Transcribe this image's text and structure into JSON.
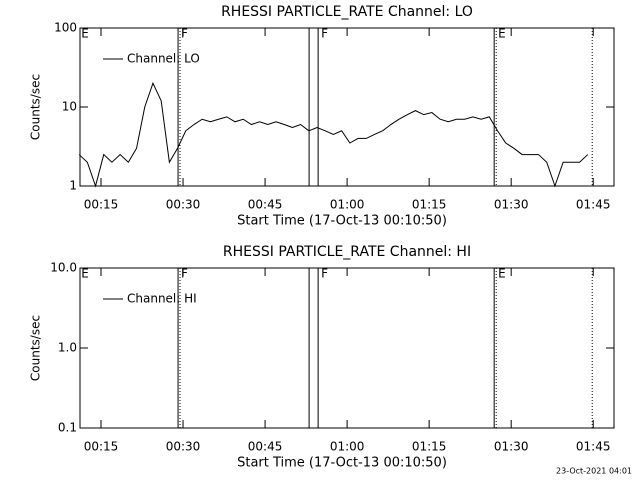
{
  "chart_data": [
    {
      "type": "line",
      "title": "RHESSI PARTICLE_RATE Channel: LO",
      "xlabel": "Start Time (17-Oct-13 00:10:50)",
      "ylabel": "Counts/sec",
      "log_y": true,
      "xlim": [
        11.16,
        108.8
      ],
      "ylim": [
        1,
        100
      ],
      "yticks": [
        1,
        10,
        100
      ],
      "xticks": [
        {
          "value": 15,
          "label": "00:15"
        },
        {
          "value": 30,
          "label": "00:30"
        },
        {
          "value": 45,
          "label": "00:45"
        },
        {
          "value": 60,
          "label": "01:00"
        },
        {
          "value": 75,
          "label": "01:15"
        },
        {
          "value": 90,
          "label": "01:30"
        },
        {
          "value": 105,
          "label": "01:45"
        }
      ],
      "x": [
        11,
        12.5,
        14,
        15.5,
        17,
        18.5,
        20,
        21.5,
        23,
        24.5,
        26,
        27.5,
        29,
        30.5,
        32,
        33.5,
        35,
        36.5,
        38,
        39.5,
        41,
        42.5,
        44,
        45.5,
        47,
        48.5,
        50,
        51.5,
        53,
        54.5,
        56,
        57.5,
        59,
        60.5,
        62,
        63.5,
        65,
        66.5,
        68,
        69.5,
        71,
        72.5,
        74,
        75.5,
        77,
        78.5,
        80,
        81.5,
        83,
        84.5,
        86,
        87.5,
        89,
        90.5,
        92,
        93.5,
        95,
        96.5,
        98,
        99.5,
        101,
        102.5,
        104
      ],
      "series": [
        {
          "name": "Channel: LO",
          "color": "#000000",
          "values": [
            2.5,
            2,
            1,
            2.5,
            2,
            2.5,
            2,
            3,
            10,
            20,
            12,
            2,
            3,
            5,
            6,
            7,
            6.5,
            7,
            7.5,
            6.5,
            7,
            6,
            6.5,
            6,
            6.5,
            6,
            5.5,
            6,
            5,
            5.5,
            5,
            4.5,
            5,
            3.5,
            4,
            4,
            4.5,
            5,
            6,
            7,
            8,
            9,
            8,
            8.5,
            7,
            6.5,
            7,
            7,
            7.5,
            7,
            7.5,
            5,
            3.5,
            3,
            2.5,
            2.5,
            2.5,
            2,
            1,
            2,
            2,
            2,
            2.5
          ]
        }
      ],
      "markers": [
        {
          "x": 29.09,
          "style": "solid"
        },
        {
          "x": 29.45,
          "style": "dotted"
        },
        {
          "x": 53.05,
          "style": "solid"
        },
        {
          "x": 54.7,
          "style": "solid"
        },
        {
          "x": 86.89,
          "style": "solid"
        },
        {
          "x": 87.26,
          "style": "dotted"
        },
        {
          "x": 104.82,
          "style": "dotted"
        }
      ],
      "flags": [
        {
          "x": 11.2,
          "label": "E"
        },
        {
          "x": 29.45,
          "label": "F"
        },
        {
          "x": 55.06,
          "label": "F"
        },
        {
          "x": 87.44,
          "label": "E"
        }
      ]
    },
    {
      "type": "line",
      "title": "RHESSI PARTICLE_RATE Channel: HI",
      "xlabel": "Start Time (17-Oct-13 00:10:50)",
      "ylabel": "Counts/sec",
      "log_y": true,
      "xlim": [
        11.16,
        108.8
      ],
      "ylim": [
        0.1,
        10
      ],
      "yticks": [
        0.1,
        {
          "value": 1,
          "label": "1.0"
        },
        {
          "value": 10,
          "label": "10.0"
        }
      ],
      "xticks": [
        {
          "value": 15,
          "label": "00:15"
        },
        {
          "value": 30,
          "label": "00:30"
        },
        {
          "value": 45,
          "label": "00:45"
        },
        {
          "value": 60,
          "label": "01:00"
        },
        {
          "value": 75,
          "label": "01:15"
        },
        {
          "value": 90,
          "label": "01:30"
        },
        {
          "value": 105,
          "label": "01:45"
        }
      ],
      "x": [],
      "series": [
        {
          "name": "Channel: HI",
          "color": "#000000",
          "values": []
        }
      ],
      "markers": [
        {
          "x": 29.09,
          "style": "solid"
        },
        {
          "x": 29.45,
          "style": "dotted"
        },
        {
          "x": 53.05,
          "style": "solid"
        },
        {
          "x": 54.7,
          "style": "solid"
        },
        {
          "x": 86.89,
          "style": "solid"
        },
        {
          "x": 87.26,
          "style": "dotted"
        },
        {
          "x": 104.82,
          "style": "dotted"
        }
      ],
      "flags": [
        {
          "x": 11.2,
          "label": "E"
        },
        {
          "x": 29.45,
          "label": "F"
        },
        {
          "x": 55.06,
          "label": "F"
        },
        {
          "x": 87.44,
          "label": "E"
        }
      ]
    }
  ],
  "footer": "23-Oct-2021 04:01"
}
